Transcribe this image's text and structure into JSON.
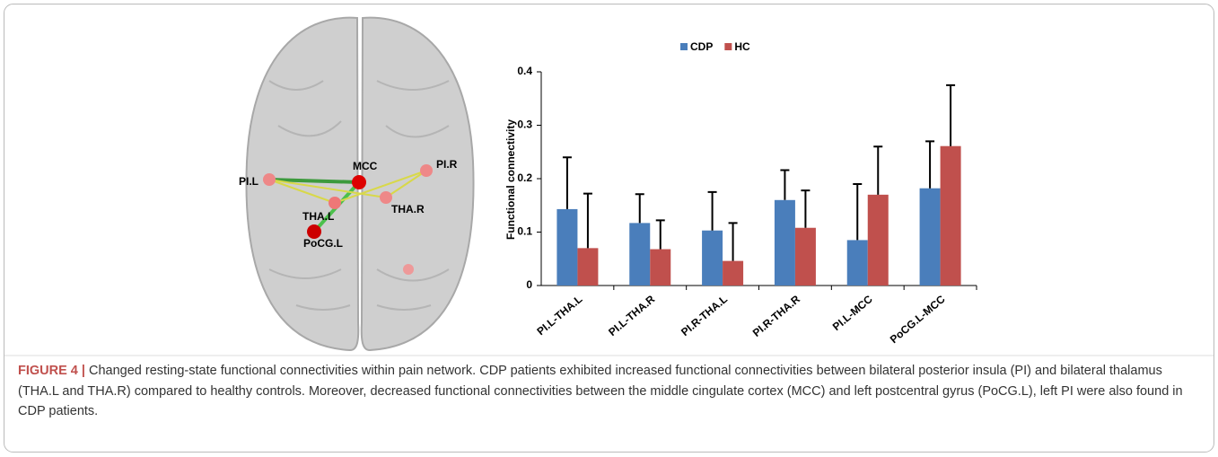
{
  "figure": {
    "brain_labels": [
      "PI.L",
      "MCC",
      "PI.R",
      "THA.L",
      "THA.R",
      "PoCG.L"
    ],
    "caption": {
      "label": "FIGURE 4 |",
      "text": "Changed resting-state functional connectivities within pain network. CDP patients exhibited increased functional connectivities between bilateral posterior insula (PI) and bilateral thalamus (THA.L and THA.R) compared to healthy controls. Moreover, decreased functional connectivities between the middle cingulate cortex (MCC) and left postcentral gyrus (PoCG.L), left PI were also found in CDP patients."
    }
  },
  "chart_data": {
    "type": "bar",
    "y_label": "Functional connectivity",
    "categories": [
      "PI.L-THA.L",
      "PI.L-THA.R",
      "PI.R-THA.L",
      "PI.R-THA.R",
      "PI.L-MCC",
      "PoCG.L-MCC"
    ],
    "series": [
      {
        "name": "CDP",
        "color": "#4a7ebb",
        "values": [
          0.143,
          0.117,
          0.103,
          0.16,
          0.085,
          0.182
        ],
        "errors": [
          0.097,
          0.054,
          0.072,
          0.056,
          0.105,
          0.088
        ]
      },
      {
        "name": "HC",
        "color": "#c0504d",
        "values": [
          0.07,
          0.068,
          0.046,
          0.108,
          0.17,
          0.261
        ],
        "errors": [
          0.102,
          0.054,
          0.071,
          0.07,
          0.09,
          0.114
        ]
      }
    ],
    "ylim": [
      0,
      0.4
    ],
    "yticks": [
      0,
      0.1,
      0.2,
      0.3,
      0.4
    ],
    "legend": "top"
  }
}
